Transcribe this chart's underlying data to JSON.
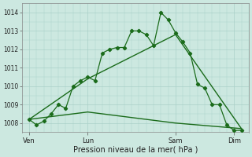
{
  "title": "",
  "xlabel": "Pression niveau de la mer( hPa )",
  "ylabel": "",
  "bg_color": "#cce8e0",
  "grid_color": "#aad0c8",
  "line_color": "#1a6b1a",
  "ylim": [
    1007.5,
    1014.5
  ],
  "day_labels": [
    "Ven",
    "Lun",
    "Sam",
    "Dim"
  ],
  "day_positions": [
    0,
    8,
    20,
    28
  ],
  "yticks": [
    1008,
    1009,
    1010,
    1011,
    1012,
    1013,
    1014
  ],
  "series1_x": [
    0,
    1,
    2,
    3,
    4,
    5,
    6,
    7,
    8,
    9,
    10,
    11,
    12,
    13,
    14,
    15,
    16,
    17,
    18,
    19,
    20,
    21,
    22,
    23,
    24,
    25,
    26,
    27,
    28,
    29
  ],
  "series1_y": [
    1008.2,
    1007.9,
    1008.1,
    1008.5,
    1009.0,
    1008.8,
    1010.0,
    1010.3,
    1010.5,
    1010.3,
    1011.8,
    1012.0,
    1012.1,
    1012.1,
    1013.0,
    1013.0,
    1012.8,
    1012.2,
    1014.0,
    1013.6,
    1012.9,
    1012.4,
    1011.8,
    1010.1,
    1009.9,
    1009.0,
    1009.0,
    1007.9,
    1007.6,
    1007.6
  ],
  "series2_x": [
    0,
    8,
    20,
    29
  ],
  "series2_y": [
    1008.2,
    1010.4,
    1012.8,
    1007.7
  ],
  "series3_x": [
    0,
    8,
    20,
    29
  ],
  "series3_y": [
    1008.2,
    1008.6,
    1008.0,
    1007.7
  ],
  "xlim": [
    -1,
    30
  ]
}
